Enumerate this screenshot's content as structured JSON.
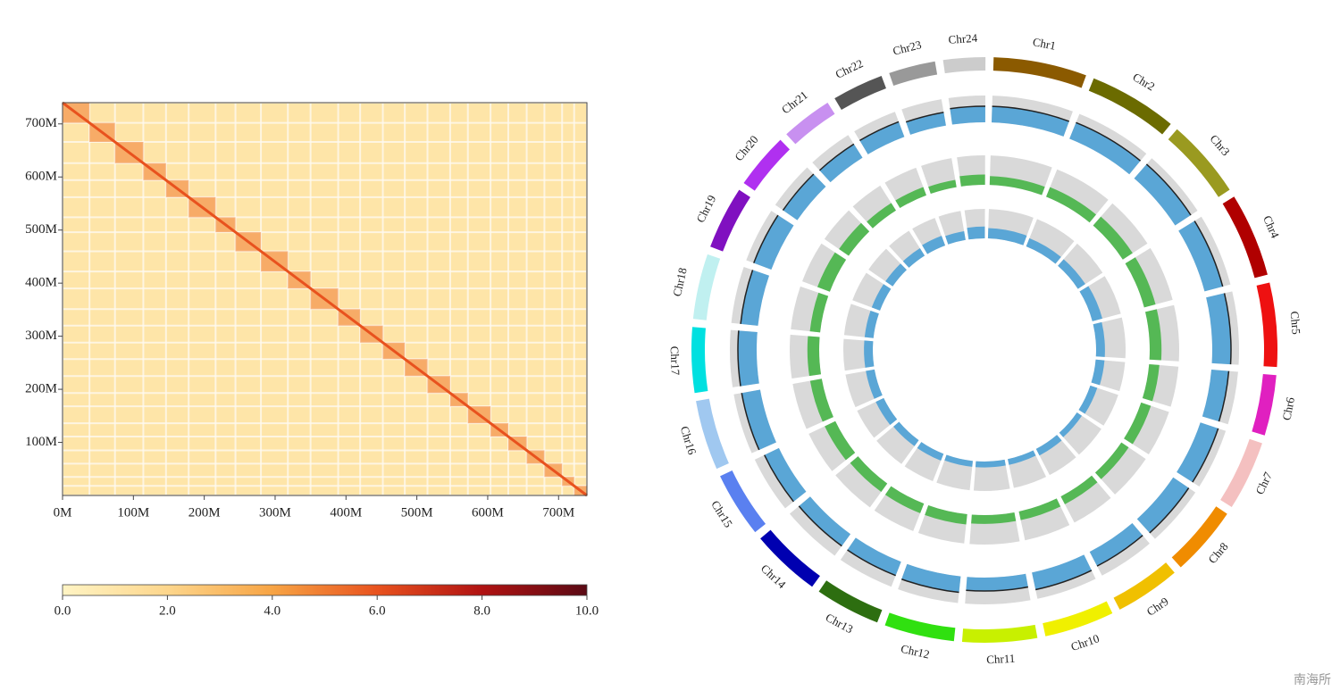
{
  "chart_data": [
    {
      "type": "heatmap",
      "xlim": [
        0,
        740
      ],
      "ylim": [
        0,
        740
      ],
      "xticks": [
        {
          "value": 0,
          "label": "0M"
        },
        {
          "value": 100,
          "label": "100M"
        },
        {
          "value": 200,
          "label": "200M"
        },
        {
          "value": 300,
          "label": "300M"
        },
        {
          "value": 400,
          "label": "400M"
        },
        {
          "value": 500,
          "label": "500M"
        },
        {
          "value": 600,
          "label": "600M"
        },
        {
          "value": 700,
          "label": "700M"
        }
      ],
      "yticks": [
        {
          "value": 100,
          "label": "100M"
        },
        {
          "value": 200,
          "label": "200M"
        },
        {
          "value": 300,
          "label": "300M"
        },
        {
          "value": 400,
          "label": "400M"
        },
        {
          "value": 500,
          "label": "500M"
        },
        {
          "value": 600,
          "label": "600M"
        },
        {
          "value": 700,
          "label": "700M"
        }
      ],
      "block_edges": [
        0,
        38,
        74,
        114,
        146,
        178,
        216,
        244,
        280,
        318,
        350,
        389,
        420,
        452,
        483,
        515,
        547,
        572,
        604,
        629,
        655,
        680,
        705,
        722,
        740
      ],
      "block_values": [
        5,
        5,
        5,
        5,
        5,
        5,
        5,
        5,
        5,
        5,
        5,
        5,
        5,
        5,
        5,
        5,
        5,
        5,
        5,
        5,
        5,
        5,
        5,
        5
      ],
      "diagonal_value": 6,
      "background_value": 1,
      "colormap": [
        "#fff4c4",
        "#fdd68c",
        "#f7a444",
        "#e8521e",
        "#b01212",
        "#5a0a14"
      ],
      "colorbar_lim": [
        0,
        10
      ],
      "colorbar_ticks": [
        {
          "value": 0,
          "label": "0.0"
        },
        {
          "value": 2,
          "label": "2.0"
        },
        {
          "value": 4,
          "label": "4.0"
        },
        {
          "value": 6,
          "label": "6.0"
        },
        {
          "value": 8,
          "label": "8.0"
        },
        {
          "value": 10,
          "label": "10.0"
        }
      ]
    },
    {
      "type": "circos",
      "chromosomes": [
        "Chr1",
        "Chr2",
        "Chr3",
        "Chr4",
        "Chr5",
        "Chr6",
        "Chr7",
        "Chr8",
        "Chr9",
        "Chr10",
        "Chr11",
        "Chr12",
        "Chr13",
        "Chr14",
        "Chr15",
        "Chr16",
        "Chr17",
        "Chr18",
        "Chr19",
        "Chr20",
        "Chr21",
        "Chr22",
        "Chr23",
        "Chr24"
      ],
      "lengths": [
        40,
        38,
        34,
        36,
        36,
        26,
        30,
        30,
        28,
        30,
        32,
        30,
        28,
        30,
        28,
        30,
        28,
        28,
        27,
        24,
        22,
        22,
        20,
        18
      ],
      "colors": [
        "#8b5a00",
        "#6b6b00",
        "#9a9a20",
        "#b00000",
        "#ee1111",
        "#e020c0",
        "#f4c0c0",
        "#f08c00",
        "#f0c000",
        "#f0f000",
        "#c8f000",
        "#30e010",
        "#2d6e10",
        "#0000b0",
        "#5a80f0",
        "#a0c8f0",
        "#00e0e0",
        "#c0f0f0",
        "#8010c0",
        "#b030f0",
        "#c890f0",
        "#555555",
        "#999999",
        "#cccccc"
      ],
      "ylim": [
        0,
        1
      ],
      "tracks": [
        {
          "color": "#5aa6d6",
          "line": true,
          "values": [
            0.6,
            0.65,
            0.7,
            0.7,
            0.7,
            0.65,
            0.7,
            0.7,
            0.6,
            0.65,
            0.5,
            0.6,
            0.55,
            0.55,
            0.6,
            0.7,
            0.7,
            0.65,
            0.7,
            0.65,
            0.6,
            0.6,
            0.5,
            0.6
          ]
        },
        {
          "color": "#55b855",
          "line": false,
          "values": [
            0.3,
            0.35,
            0.4,
            0.4,
            0.4,
            0.35,
            0.35,
            0.3,
            0.3,
            0.3,
            0.3,
            0.35,
            0.35,
            0.35,
            0.4,
            0.4,
            0.4,
            0.35,
            0.45,
            0.4,
            0.3,
            0.3,
            0.25,
            0.35
          ]
        },
        {
          "color": "#5aa6d6",
          "line": false,
          "values": [
            0.35,
            0.3,
            0.3,
            0.35,
            0.3,
            0.3,
            0.25,
            0.2,
            0.25,
            0.2,
            0.2,
            0.2,
            0.25,
            0.25,
            0.3,
            0.3,
            0.3,
            0.3,
            0.3,
            0.3,
            0.3,
            0.35,
            0.3,
            0.4
          ]
        }
      ]
    }
  ],
  "watermark": "南海所"
}
